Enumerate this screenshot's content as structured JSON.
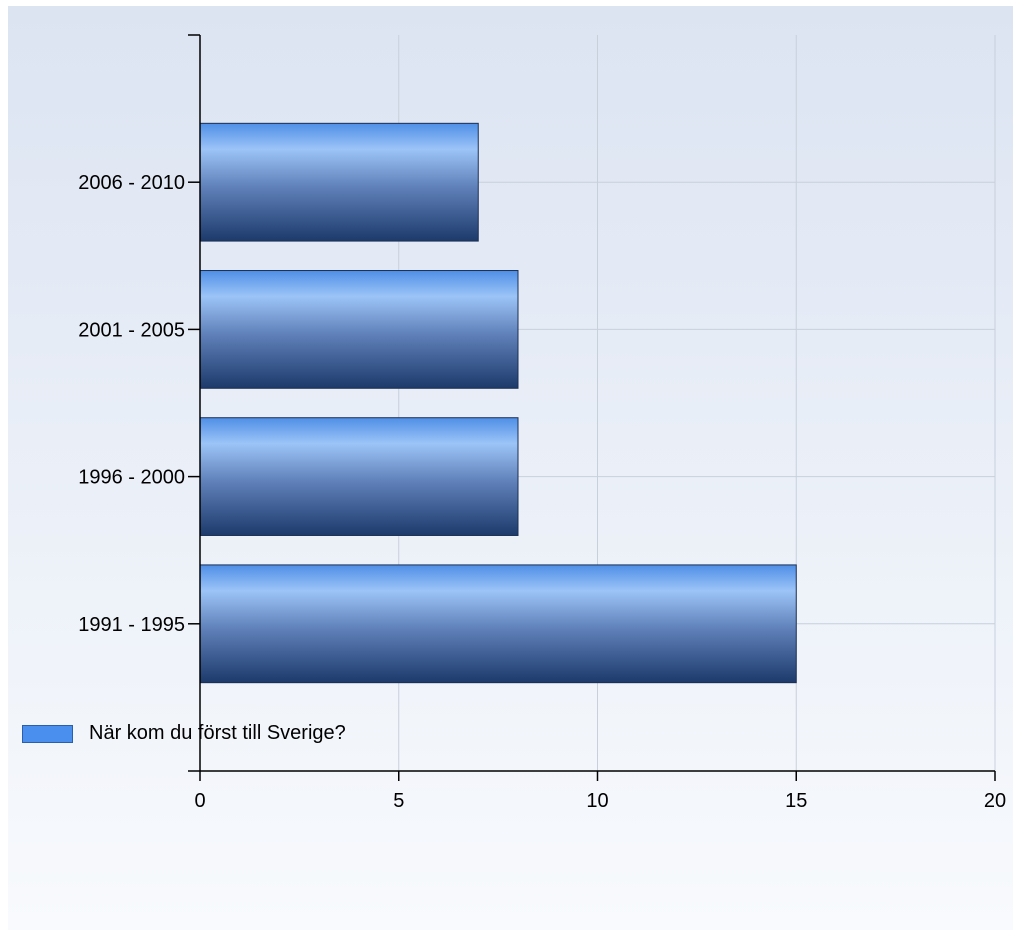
{
  "chart_data": {
    "type": "bar",
    "orientation": "horizontal",
    "categories": [
      "2006 - 2010",
      "2001 - 2005",
      "1996 - 2000",
      "1991 - 1995"
    ],
    "series": [
      {
        "name": "När kom du först till Sverige?",
        "values": [
          7,
          8,
          8,
          15
        ]
      }
    ],
    "xlim": [
      0,
      20
    ],
    "xticks": [
      0,
      5,
      10,
      15,
      20
    ],
    "grid": true,
    "legend_position": "bottom-left"
  },
  "colors": {
    "bar_light": "#9cc4f7",
    "bar_mid": "#4f8fe6",
    "bar_dark": "#1d3a6b",
    "legend_swatch": "#4a8fee",
    "background_top": "#dce4f2",
    "background_bottom": "#f8fafd",
    "grid": "#c8d0dc",
    "axis": "#000000"
  }
}
